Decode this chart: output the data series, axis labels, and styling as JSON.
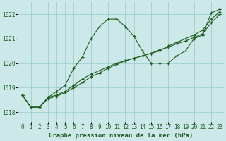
{
  "background_color": "#cce8e8",
  "grid_color": "#9ecece",
  "line_color": "#1e5e1e",
  "series1_y": [
    1018.7,
    1018.2,
    1018.2,
    1018.6,
    1018.85,
    1019.1,
    1019.8,
    1020.25,
    1021.0,
    1021.5,
    1021.8,
    1021.8,
    1021.5,
    1021.1,
    1020.5,
    1020.0,
    1020.0,
    1020.0,
    1020.3,
    1020.5,
    1021.0,
    1021.15,
    1022.05,
    1022.2
  ],
  "series2_y": [
    1018.7,
    1018.2,
    1018.2,
    1018.55,
    1018.65,
    1018.8,
    1019.0,
    1019.2,
    1019.45,
    1019.6,
    1019.8,
    1019.95,
    1020.1,
    1020.2,
    1020.3,
    1020.4,
    1020.55,
    1020.65,
    1020.8,
    1020.9,
    1021.05,
    1021.2,
    1021.65,
    1022.0
  ],
  "series3_y": [
    1018.7,
    1018.2,
    1018.2,
    1018.6,
    1018.7,
    1018.85,
    1019.1,
    1019.35,
    1019.55,
    1019.7,
    1019.85,
    1020.0,
    1020.1,
    1020.2,
    1020.3,
    1020.4,
    1020.5,
    1020.7,
    1020.85,
    1021.0,
    1021.15,
    1021.35,
    1021.8,
    1022.1
  ],
  "ylim": [
    1017.6,
    1022.5
  ],
  "yticks": [
    1018,
    1019,
    1020,
    1021,
    1022
  ],
  "xticks": [
    0,
    1,
    2,
    3,
    4,
    5,
    6,
    7,
    8,
    9,
    10,
    11,
    12,
    13,
    14,
    15,
    16,
    17,
    18,
    19,
    20,
    21,
    22,
    23
  ],
  "xlabel": "Graphe pression niveau de la mer (hPa)",
  "xlabel_fontsize": 6.5,
  "tick_fontsize": 5.5
}
